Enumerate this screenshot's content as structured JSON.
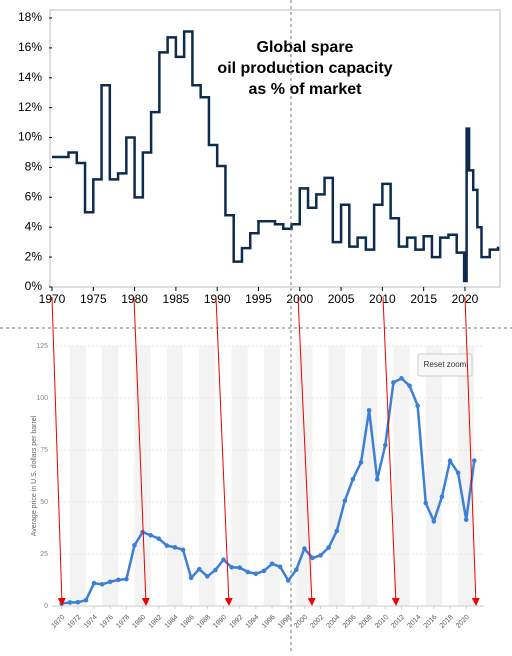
{
  "chart_data": [
    {
      "type": "line",
      "step": true,
      "title": [
        "Global spare",
        "oil production capacity",
        "as % of market"
      ],
      "series": [
        {
          "color": "#0d2b4e",
          "x": [
            1970,
            1972,
            1973,
            1974,
            1975,
            1976,
            1977,
            1978,
            1979,
            1980,
            1981,
            1982,
            1983,
            1984,
            1985,
            1986,
            1987,
            1988,
            1989,
            1990,
            1991,
            1992,
            1993,
            1994,
            1995,
            1997,
            1998,
            1999,
            2000,
            2001,
            2002,
            2003,
            2004,
            2005,
            2006,
            2007,
            2008,
            2009,
            2010,
            2011,
            2012,
            2013,
            2014,
            2015,
            2016,
            2017,
            2018,
            2019,
            2019.9,
            2020.2,
            2020.5,
            2021,
            2021.5,
            2022,
            2023,
            2024
          ],
          "values": [
            8.7,
            9.0,
            8.3,
            5.0,
            7.2,
            13.5,
            7.2,
            7.6,
            10.0,
            6.0,
            9.0,
            11.7,
            15.7,
            16.7,
            15.4,
            17.1,
            13.5,
            12.7,
            9.5,
            8.1,
            4.8,
            1.7,
            2.6,
            3.6,
            4.4,
            4.2,
            3.9,
            4.2,
            6.6,
            5.3,
            6.2,
            7.3,
            3.0,
            5.5,
            2.7,
            3.3,
            2.5,
            5.5,
            6.9,
            4.6,
            2.7,
            3.3,
            2.5,
            3.4,
            2.0,
            3.3,
            3.5,
            2.3,
            0.4,
            10.6,
            7.8,
            6.5,
            4.0,
            2.0,
            2.5,
            2.7
          ]
        }
      ],
      "xlim": [
        1970,
        2024
      ],
      "xticks": [
        1970,
        1975,
        1980,
        1985,
        1990,
        1995,
        2000,
        2005,
        2010,
        2015,
        2020
      ],
      "ylim": [
        0,
        18
      ],
      "yticks": [
        {
          "value": 0,
          "label": "0%"
        },
        {
          "value": 2,
          "label": "2%"
        },
        {
          "value": 4,
          "label": "4%"
        },
        {
          "value": 6,
          "label": "6%"
        },
        {
          "value": 8,
          "label": "8%"
        },
        {
          "value": 10,
          "label": "10%"
        },
        {
          "value": 12,
          "label": "12%"
        },
        {
          "value": 14,
          "label": "14%"
        },
        {
          "value": 16,
          "label": "16%"
        },
        {
          "value": 18,
          "label": "18%"
        }
      ],
      "grid": false
    },
    {
      "type": "line",
      "step": false,
      "markers": true,
      "y_label": "Average price in U.S. dollars per barrel",
      "button": "Reset zoom",
      "series": [
        {
          "color": "#3b7fd6",
          "x": [
            1970,
            1971,
            1972,
            1973,
            1974,
            1975,
            1976,
            1977,
            1978,
            1979,
            1980,
            1981,
            1982,
            1983,
            1984,
            1985,
            1986,
            1987,
            1988,
            1989,
            1990,
            1991,
            1992,
            1993,
            1994,
            1995,
            1996,
            1997,
            1998,
            1999,
            2000,
            2001,
            2002,
            2003,
            2004,
            2005,
            2006,
            2007,
            2008,
            2009,
            2010,
            2011,
            2012,
            2013,
            2014,
            2015,
            2016,
            2017,
            2018,
            2019,
            2020,
            2021
          ],
          "values": [
            1.21,
            1.7,
            1.82,
            2.8,
            10.97,
            10.43,
            11.63,
            12.57,
            12.91,
            29.19,
            35.52,
            34.0,
            32.38,
            29.04,
            28.2,
            27.01,
            13.53,
            17.73,
            14.24,
            17.31,
            22.26,
            18.62,
            18.44,
            16.33,
            15.53,
            16.86,
            20.29,
            18.86,
            12.28,
            17.44,
            27.6,
            23.12,
            24.36,
            28.1,
            36.05,
            50.59,
            61.0,
            69.04,
            94.1,
            60.86,
            77.38,
            107.46,
            109.45,
            105.87,
            96.29,
            49.49,
            40.76,
            52.51,
            69.78,
            64.04,
            41.47,
            69.89
          ]
        }
      ],
      "xlim": [
        1968.8,
        2022.2
      ],
      "xticks": [
        1970,
        1972,
        1974,
        1976,
        1978,
        1980,
        1982,
        1984,
        1986,
        1988,
        1990,
        1992,
        1994,
        1996,
        1998,
        2000,
        2002,
        2004,
        2006,
        2008,
        2010,
        2012,
        2014,
        2016,
        2018,
        2020
      ],
      "ylim": [
        0,
        125
      ],
      "yticks": [
        0,
        25,
        50,
        75,
        100,
        125
      ],
      "grid": true
    }
  ]
}
